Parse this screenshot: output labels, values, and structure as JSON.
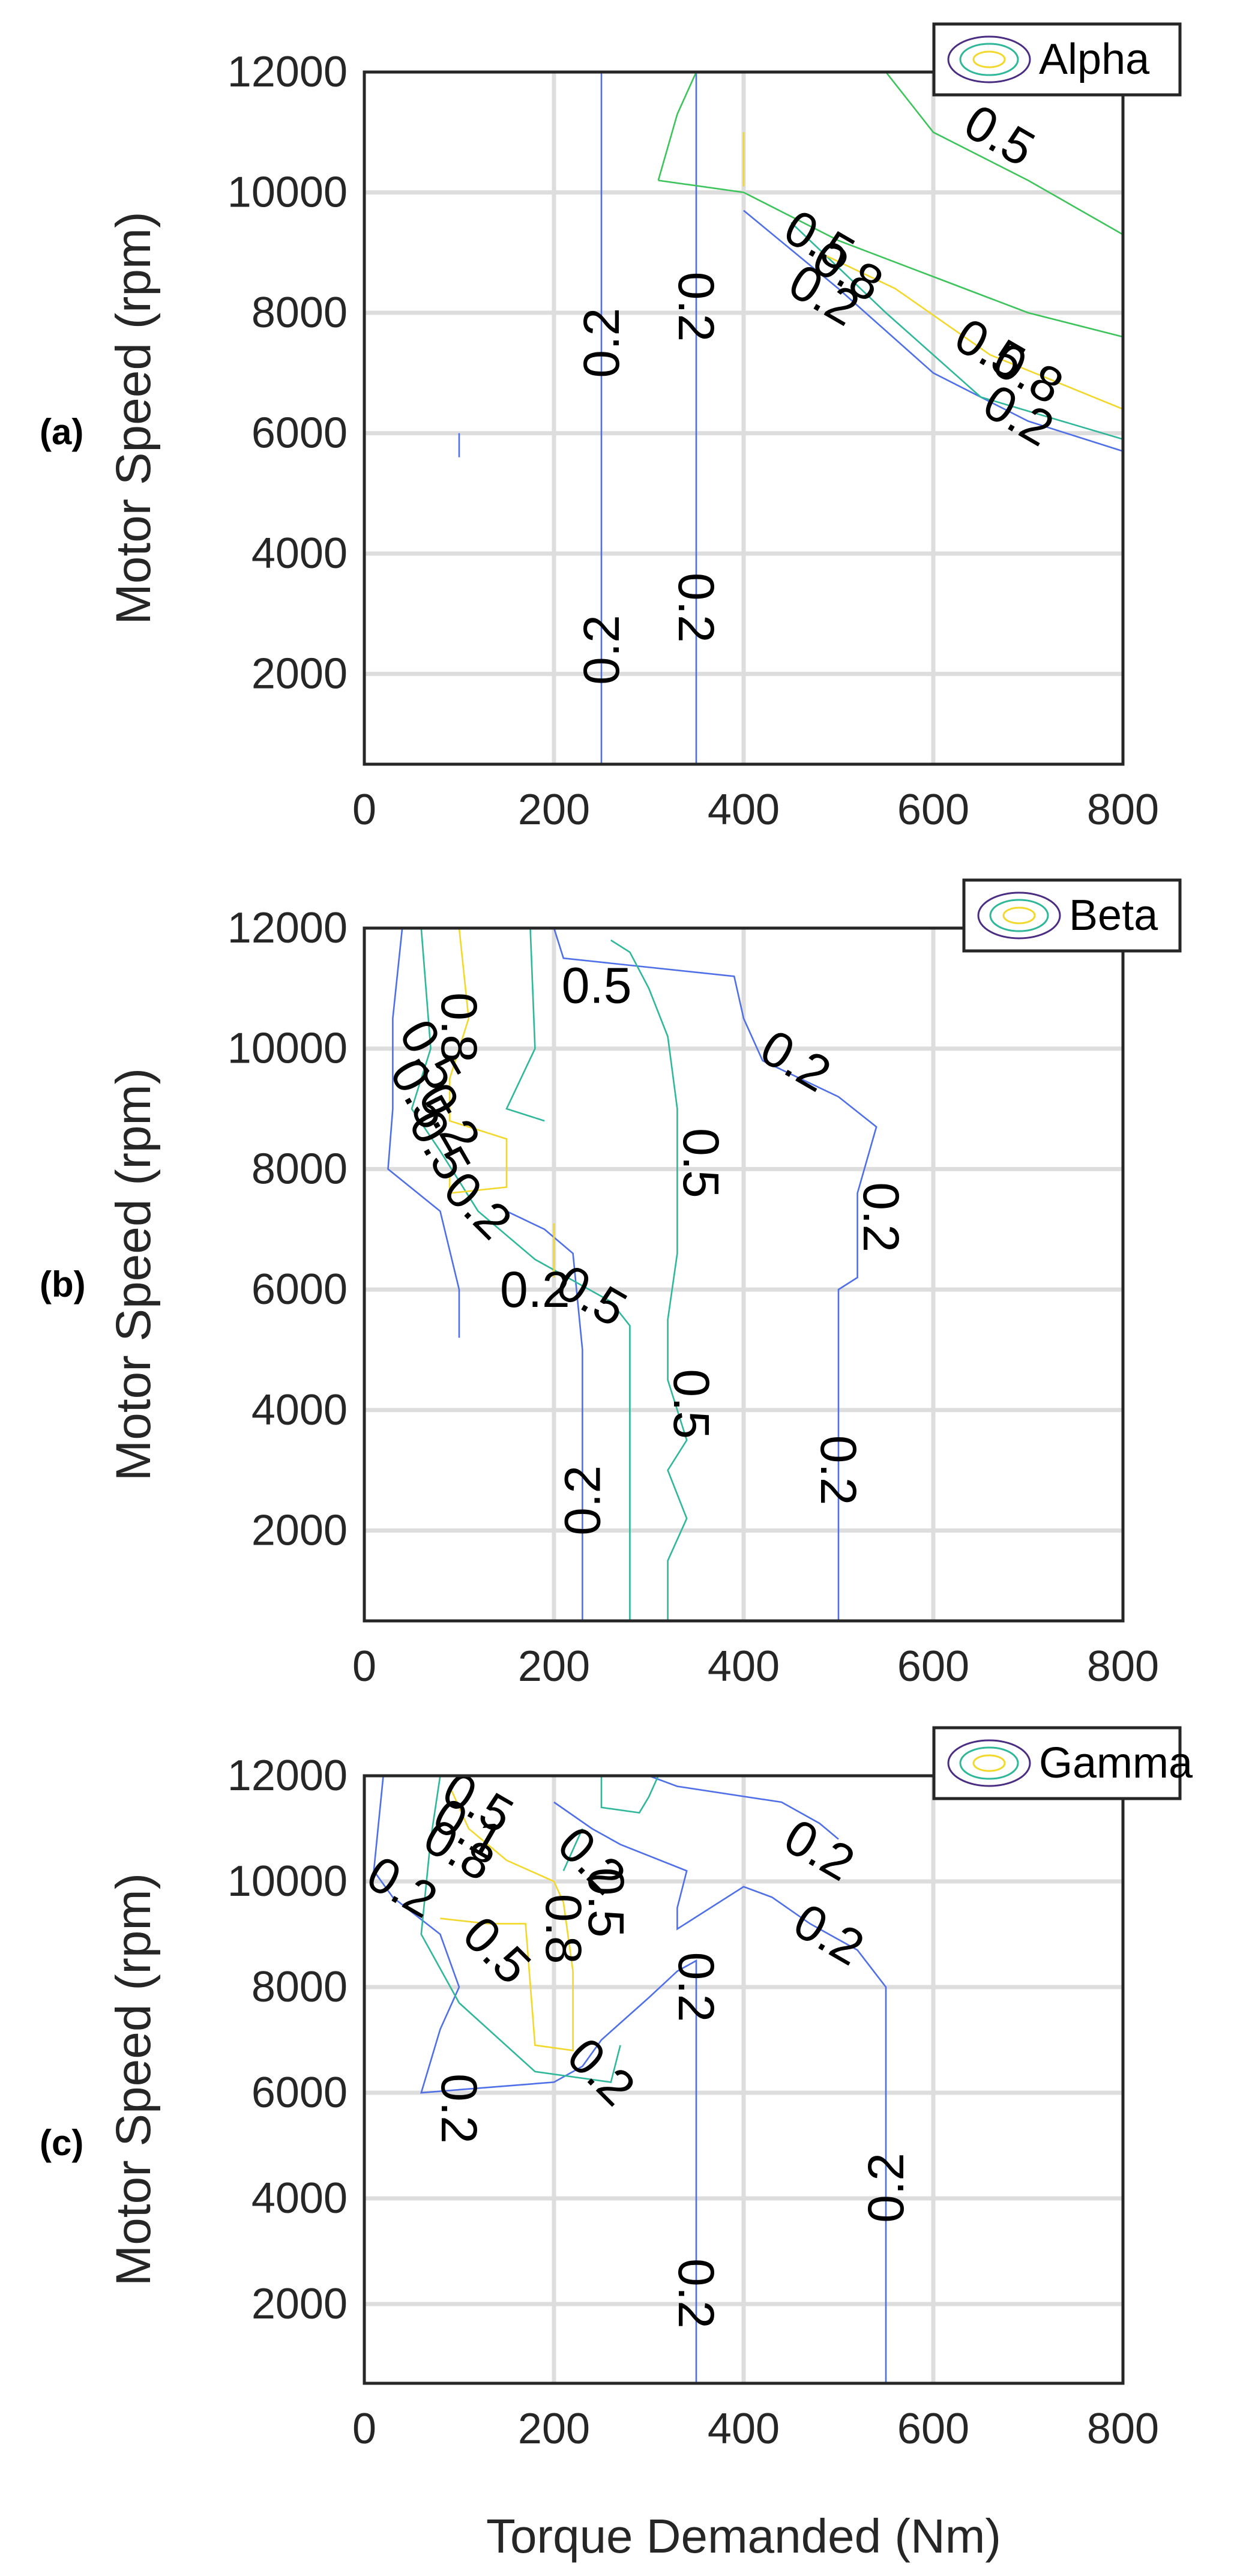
{
  "figure": {
    "xlabel": "Torque Demanded (Nm)"
  },
  "chart_data": [
    {
      "type": "contour",
      "panel_label": "(a)",
      "legend": "Alpha",
      "xlabel": "",
      "ylabel": "Motor Speed (rpm)",
      "xlim": [
        0,
        800
      ],
      "ylim": [
        500,
        12000
      ],
      "xticks": [
        "0",
        "200",
        "400",
        "600",
        "800"
      ],
      "yticks": [
        "2000",
        "4000",
        "6000",
        "8000",
        "10000",
        "12000"
      ],
      "grid": true,
      "legend_position": "top-right",
      "contours": [
        {
          "level": 0.2,
          "color": "#4f6fe8",
          "points": [
            [
              250,
              500
            ],
            [
              250,
              12000
            ]
          ]
        },
        {
          "level": 0.2,
          "color": "#4f6fe8",
          "points": [
            [
              350,
              500
            ],
            [
              350,
              12000
            ]
          ]
        },
        {
          "level": 0.2,
          "color": "#4f6fe8",
          "points": [
            [
              100,
              5600
            ],
            [
              100,
              6000
            ]
          ]
        },
        {
          "level": 0.2,
          "color": "#4f6fe8",
          "points": [
            [
              400,
              9700
            ],
            [
              500,
              8400
            ],
            [
              600,
              7000
            ],
            [
              700,
              6200
            ],
            [
              800,
              5700
            ]
          ]
        },
        {
          "level": 0.5,
          "color": "#2fb79a",
          "points": [
            [
              450,
              9500
            ],
            [
              550,
              8000
            ],
            [
              650,
              6600
            ],
            [
              800,
              5900
            ]
          ]
        },
        {
          "level": 0.5,
          "color": "#3cc45a",
          "points": [
            [
              310,
              10200
            ],
            [
              330,
              11300
            ],
            [
              350,
              12000
            ]
          ]
        },
        {
          "level": 0.5,
          "color": "#3cc45a",
          "points": [
            [
              310,
              10200
            ],
            [
              400,
              10000
            ],
            [
              500,
              9200
            ],
            [
              600,
              8600
            ],
            [
              700,
              8000
            ],
            [
              800,
              7600
            ]
          ]
        },
        {
          "level": 0.5,
          "color": "#3cc45a",
          "points": [
            [
              550,
              12000
            ],
            [
              600,
              11000
            ],
            [
              700,
              10200
            ],
            [
              800,
              9300
            ]
          ]
        },
        {
          "level": 0.8,
          "color": "#f2d82a",
          "points": [
            [
              400,
              11000
            ],
            [
              400,
              10100
            ]
          ]
        },
        {
          "level": 0.8,
          "color": "#f2d82a",
          "points": [
            [
              480,
              9000
            ],
            [
              560,
              8400
            ],
            [
              660,
              7300
            ],
            [
              800,
              6400
            ]
          ]
        }
      ],
      "contour_labels": [
        {
          "text": "0.5",
          "x": 670,
          "y": 10950,
          "angle": 30
        },
        {
          "text": "0.2",
          "x": 250,
          "y": 7500,
          "angle": -90
        },
        {
          "text": "0.2",
          "x": 350,
          "y": 8100,
          "angle": 90
        },
        {
          "text": "0.2",
          "x": 250,
          "y": 2400,
          "angle": -90
        },
        {
          "text": "0.2",
          "x": 350,
          "y": 3100,
          "angle": 90
        },
        {
          "text": "0.5",
          "x": 480,
          "y": 9200,
          "angle": 30
        },
        {
          "text": "0.8",
          "x": 510,
          "y": 8700,
          "angle": 30
        },
        {
          "text": "0.2",
          "x": 485,
          "y": 8300,
          "angle": 30
        },
        {
          "text": "0.5",
          "x": 660,
          "y": 7400,
          "angle": 30
        },
        {
          "text": "0.8",
          "x": 700,
          "y": 7000,
          "angle": 30
        },
        {
          "text": "0.2",
          "x": 690,
          "y": 6300,
          "angle": 30
        }
      ]
    },
    {
      "type": "contour",
      "panel_label": "(b)",
      "legend": "Beta",
      "xlabel": "",
      "ylabel": "Motor Speed (rpm)",
      "xlim": [
        0,
        800
      ],
      "ylim": [
        500,
        12000
      ],
      "xticks": [
        "0",
        "200",
        "400",
        "600",
        "800"
      ],
      "yticks": [
        "2000",
        "4000",
        "6000",
        "8000",
        "10000",
        "12000"
      ],
      "grid": true,
      "legend_position": "top-right",
      "contours": [
        {
          "level": 0.2,
          "color": "#4f6fe8",
          "points": [
            [
              40,
              12000
            ],
            [
              30,
              10500
            ],
            [
              30,
              9000
            ],
            [
              25,
              8000
            ],
            [
              80,
              7300
            ],
            [
              100,
              6000
            ],
            [
              100,
              5200
            ]
          ]
        },
        {
          "level": 0.2,
          "color": "#4f6fe8",
          "points": [
            [
              230,
              500
            ],
            [
              230,
              5000
            ],
            [
              220,
              6600
            ],
            [
              190,
              7000
            ],
            [
              150,
              7300
            ]
          ]
        },
        {
          "level": 0.2,
          "color": "#4f6fe8",
          "points": [
            [
              200,
              12000
            ],
            [
              210,
              11500
            ],
            [
              390,
              11200
            ],
            [
              400,
              10500
            ],
            [
              420,
              9800
            ],
            [
              500,
              9200
            ],
            [
              540,
              8700
            ],
            [
              520,
              7600
            ],
            [
              520,
              6200
            ],
            [
              500,
              6000
            ],
            [
              500,
              500
            ]
          ]
        },
        {
          "level": 0.5,
          "color": "#2fb79a",
          "points": [
            [
              60,
              12000
            ],
            [
              70,
              10000
            ],
            [
              50,
              9000
            ],
            [
              80,
              8300
            ],
            [
              120,
              7300
            ],
            [
              180,
              6500
            ],
            [
              260,
              5800
            ],
            [
              280,
              5400
            ],
            [
              280,
              500
            ]
          ]
        },
        {
          "level": 0.5,
          "color": "#2fb79a",
          "points": [
            [
              175,
              12000
            ],
            [
              180,
              10000
            ],
            [
              150,
              9000
            ],
            [
              190,
              8800
            ]
          ]
        },
        {
          "level": 0.5,
          "color": "#2fb79a",
          "points": [
            [
              320,
              500
            ],
            [
              320,
              1500
            ],
            [
              340,
              2200
            ],
            [
              320,
              3000
            ],
            [
              340,
              3500
            ],
            [
              320,
              4500
            ],
            [
              320,
              5500
            ],
            [
              330,
              6600
            ],
            [
              330,
              9000
            ],
            [
              320,
              10200
            ],
            [
              300,
              11000
            ],
            [
              280,
              11600
            ],
            [
              260,
              11800
            ]
          ]
        },
        {
          "level": 0.8,
          "color": "#f2d82a",
          "points": [
            [
              100,
              12000
            ],
            [
              110,
              10500
            ],
            [
              90,
              9500
            ],
            [
              90,
              8800
            ],
            [
              150,
              8500
            ],
            [
              150,
              7700
            ],
            [
              90,
              7600
            ],
            [
              90,
              7900
            ]
          ]
        },
        {
          "level": 0.8,
          "color": "#f2d82a",
          "points": [
            [
              200,
              7100
            ],
            [
              200,
              6200
            ]
          ]
        }
      ],
      "contour_labels": [
        {
          "text": "0.8",
          "x": 100,
          "y": 10350,
          "angle": 90
        },
        {
          "text": "0.5",
          "x": 70,
          "y": 9900,
          "angle": 60
        },
        {
          "text": "0.5",
          "x": 60,
          "y": 9250,
          "angle": 60
        },
        {
          "text": "0.2",
          "x": 90,
          "y": 8850,
          "angle": 60
        },
        {
          "text": "0.5",
          "x": 80,
          "y": 8400,
          "angle": 60
        },
        {
          "text": "0.2",
          "x": 120,
          "y": 7400,
          "angle": 45
        },
        {
          "text": "0.5",
          "x": 245,
          "y": 11050,
          "angle": 0
        },
        {
          "text": "0.2",
          "x": 180,
          "y": 6000,
          "angle": 0
        },
        {
          "text": "0.5",
          "x": 240,
          "y": 5900,
          "angle": 30
        },
        {
          "text": "0.2",
          "x": 455,
          "y": 9800,
          "angle": 30
        },
        {
          "text": "0.5",
          "x": 355,
          "y": 8100,
          "angle": 90
        },
        {
          "text": "0.5",
          "x": 345,
          "y": 4100,
          "angle": 90
        },
        {
          "text": "0.2",
          "x": 545,
          "y": 7200,
          "angle": 90
        },
        {
          "text": "0.2",
          "x": 500,
          "y": 3000,
          "angle": 90
        },
        {
          "text": "0.2",
          "x": 230,
          "y": 2500,
          "angle": -90
        }
      ]
    },
    {
      "type": "contour",
      "panel_label": "(c)",
      "legend": "Gamma",
      "xlabel": "Torque Demanded (Nm)",
      "ylabel": "Motor Speed (rpm)",
      "xlim": [
        0,
        800
      ],
      "ylim": [
        500,
        12000
      ],
      "xticks": [
        "0",
        "200",
        "400",
        "600",
        "800"
      ],
      "yticks": [
        "2000",
        "4000",
        "6000",
        "8000",
        "10000",
        "12000"
      ],
      "grid": true,
      "legend_position": "top-right",
      "contours": [
        {
          "level": 0.2,
          "color": "#4f6fe8",
          "points": [
            [
              20,
              12000
            ],
            [
              10,
              10200
            ],
            [
              30,
              9700
            ],
            [
              80,
              9000
            ],
            [
              100,
              8000
            ],
            [
              80,
              7200
            ],
            [
              60,
              6000
            ],
            [
              200,
              6200
            ],
            [
              230,
              6500
            ],
            [
              250,
              7000
            ],
            [
              300,
              7800
            ],
            [
              330,
              8300
            ],
            [
              350,
              8500
            ],
            [
              350,
              500
            ]
          ]
        },
        {
          "level": 0.2,
          "color": "#4f6fe8",
          "points": [
            [
              200,
              11500
            ],
            [
              240,
              11000
            ],
            [
              270,
              10700
            ],
            [
              340,
              10200
            ],
            [
              330,
              9500
            ],
            [
              330,
              9100
            ],
            [
              400,
              9900
            ],
            [
              430,
              9700
            ],
            [
              470,
              9200
            ],
            [
              520,
              8700
            ],
            [
              550,
              8000
            ],
            [
              550,
              500
            ]
          ]
        },
        {
          "level": 0.2,
          "color": "#4f6fe8",
          "points": [
            [
              300,
              12000
            ],
            [
              330,
              11800
            ],
            [
              440,
              11500
            ],
            [
              480,
              11100
            ],
            [
              500,
              10800
            ]
          ]
        },
        {
          "level": 0.5,
          "color": "#2fb79a",
          "points": [
            [
              80,
              12000
            ],
            [
              70,
              10800
            ],
            [
              60,
              9000
            ],
            [
              100,
              7700
            ],
            [
              180,
              6400
            ],
            [
              260,
              6200
            ],
            [
              270,
              6900
            ]
          ]
        },
        {
          "level": 0.5,
          "color": "#2fb79a",
          "points": [
            [
              250,
              12000
            ],
            [
              250,
              11400
            ],
            [
              290,
              11300
            ],
            [
              300,
              11600
            ],
            [
              310,
              12000
            ]
          ]
        },
        {
          "level": 0.5,
          "color": "#2fb79a",
          "points": [
            [
              210,
              10200
            ],
            [
              230,
              11000
            ]
          ]
        },
        {
          "level": 0.8,
          "color": "#f2d82a",
          "points": [
            [
              90,
              11800
            ],
            [
              110,
              11000
            ],
            [
              150,
              10400
            ],
            [
              200,
              10000
            ],
            [
              210,
              9600
            ],
            [
              220,
              8300
            ],
            [
              220,
              6800
            ],
            [
              180,
              6900
            ],
            [
              170,
              9200
            ],
            [
              130,
              9200
            ],
            [
              80,
              9300
            ]
          ]
        }
      ],
      "contour_labels": [
        {
          "text": "0.5",
          "x": 120,
          "y": 11500,
          "angle": 30
        },
        {
          "text": "0.1",
          "x": 110,
          "y": 11000,
          "angle": 30
        },
        {
          "text": "0.8",
          "x": 100,
          "y": 10600,
          "angle": 30
        },
        {
          "text": "0.2",
          "x": 40,
          "y": 9900,
          "angle": 30
        },
        {
          "text": "0.5",
          "x": 140,
          "y": 8700,
          "angle": 45
        },
        {
          "text": "0.2",
          "x": 240,
          "y": 10400,
          "angle": 45
        },
        {
          "text": "0.5",
          "x": 255,
          "y": 9600,
          "angle": 90
        },
        {
          "text": "0.8",
          "x": 210,
          "y": 9100,
          "angle": 90
        },
        {
          "text": "0.2",
          "x": 250,
          "y": 6400,
          "angle": 45
        },
        {
          "text": "0.2",
          "x": 100,
          "y": 5700,
          "angle": 90
        },
        {
          "text": "0.2",
          "x": 350,
          "y": 8000,
          "angle": 90
        },
        {
          "text": "0.2",
          "x": 480,
          "y": 10600,
          "angle": 30
        },
        {
          "text": "0.2",
          "x": 490,
          "y": 9000,
          "angle": 30
        },
        {
          "text": "0.2",
          "x": 550,
          "y": 4200,
          "angle": -90
        },
        {
          "text": "0.2",
          "x": 350,
          "y": 2200,
          "angle": 90
        }
      ]
    }
  ]
}
